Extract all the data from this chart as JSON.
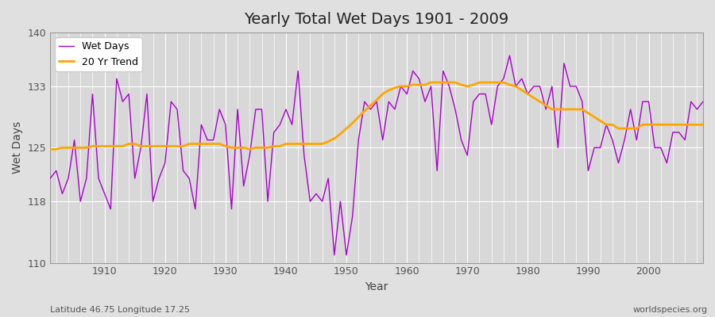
{
  "title": "Yearly Total Wet Days 1901 - 2009",
  "xlabel": "Year",
  "ylabel": "Wet Days",
  "xlim": [
    1901,
    2009
  ],
  "ylim": [
    110,
    140
  ],
  "yticks": [
    110,
    118,
    125,
    133,
    140
  ],
  "xticks": [
    1910,
    1920,
    1930,
    1940,
    1950,
    1960,
    1970,
    1980,
    1990,
    2000
  ],
  "wet_days_color": "#AA00CC",
  "trend_color": "#FFA500",
  "bg_color": "#E0E0E0",
  "plot_bg_color": "#D8D8D8",
  "grid_color": "#FFFFFF",
  "footnote_left": "Latitude 46.75 Longitude 17.25",
  "footnote_right": "worldspecies.org",
  "wet_days": [
    121,
    122,
    119,
    121,
    126,
    118,
    121,
    132,
    121,
    119,
    117,
    134,
    131,
    132,
    121,
    125,
    132,
    118,
    121,
    123,
    131,
    130,
    122,
    121,
    117,
    128,
    126,
    126,
    130,
    128,
    117,
    130,
    120,
    124,
    130,
    130,
    118,
    127,
    128,
    130,
    128,
    135,
    124,
    118,
    119,
    118,
    121,
    111,
    118,
    111,
    116,
    126,
    131,
    130,
    131,
    126,
    131,
    130,
    133,
    132,
    135,
    134,
    131,
    133,
    122,
    135,
    133,
    130,
    126,
    124,
    131,
    132,
    132,
    128,
    133,
    134,
    137,
    133,
    134,
    132,
    133,
    133,
    130,
    133,
    125,
    136,
    133,
    133,
    131,
    122,
    125,
    125,
    128,
    126,
    123,
    126,
    130,
    126,
    131,
    131,
    125,
    125,
    123,
    127,
    127,
    126,
    131,
    130,
    131
  ],
  "trend": [
    124.8,
    124.8,
    125.0,
    125.0,
    125.0,
    125.0,
    125.0,
    125.2,
    125.2,
    125.2,
    125.2,
    125.2,
    125.2,
    125.5,
    125.5,
    125.2,
    125.2,
    125.2,
    125.2,
    125.2,
    125.2,
    125.2,
    125.2,
    125.5,
    125.5,
    125.5,
    125.5,
    125.5,
    125.5,
    125.2,
    125.0,
    125.0,
    125.0,
    124.8,
    125.0,
    125.0,
    125.0,
    125.2,
    125.2,
    125.5,
    125.5,
    125.5,
    125.5,
    125.5,
    125.5,
    125.5,
    125.8,
    126.2,
    126.8,
    127.5,
    128.2,
    129.0,
    129.8,
    130.5,
    131.2,
    132.0,
    132.5,
    132.8,
    133.0,
    133.0,
    133.2,
    133.2,
    133.2,
    133.5,
    133.5,
    133.5,
    133.5,
    133.5,
    133.2,
    133.0,
    133.2,
    133.5,
    133.5,
    133.5,
    133.5,
    133.5,
    133.2,
    133.0,
    132.5,
    132.0,
    131.5,
    131.0,
    130.5,
    130.0,
    130.0,
    130.0,
    130.0,
    130.0,
    130.0,
    129.5,
    129.0,
    128.5,
    128.0,
    128.0,
    127.5,
    127.5,
    127.5,
    127.5,
    128.0,
    128.0,
    128.0,
    128.0,
    128.0,
    128.0,
    128.0,
    128.0,
    128.0,
    128.0,
    128.0
  ],
  "legend_loc": "upper left",
  "title_fontsize": 14,
  "axis_label_fontsize": 10,
  "tick_labelsize": 9,
  "footnote_fontsize": 8
}
